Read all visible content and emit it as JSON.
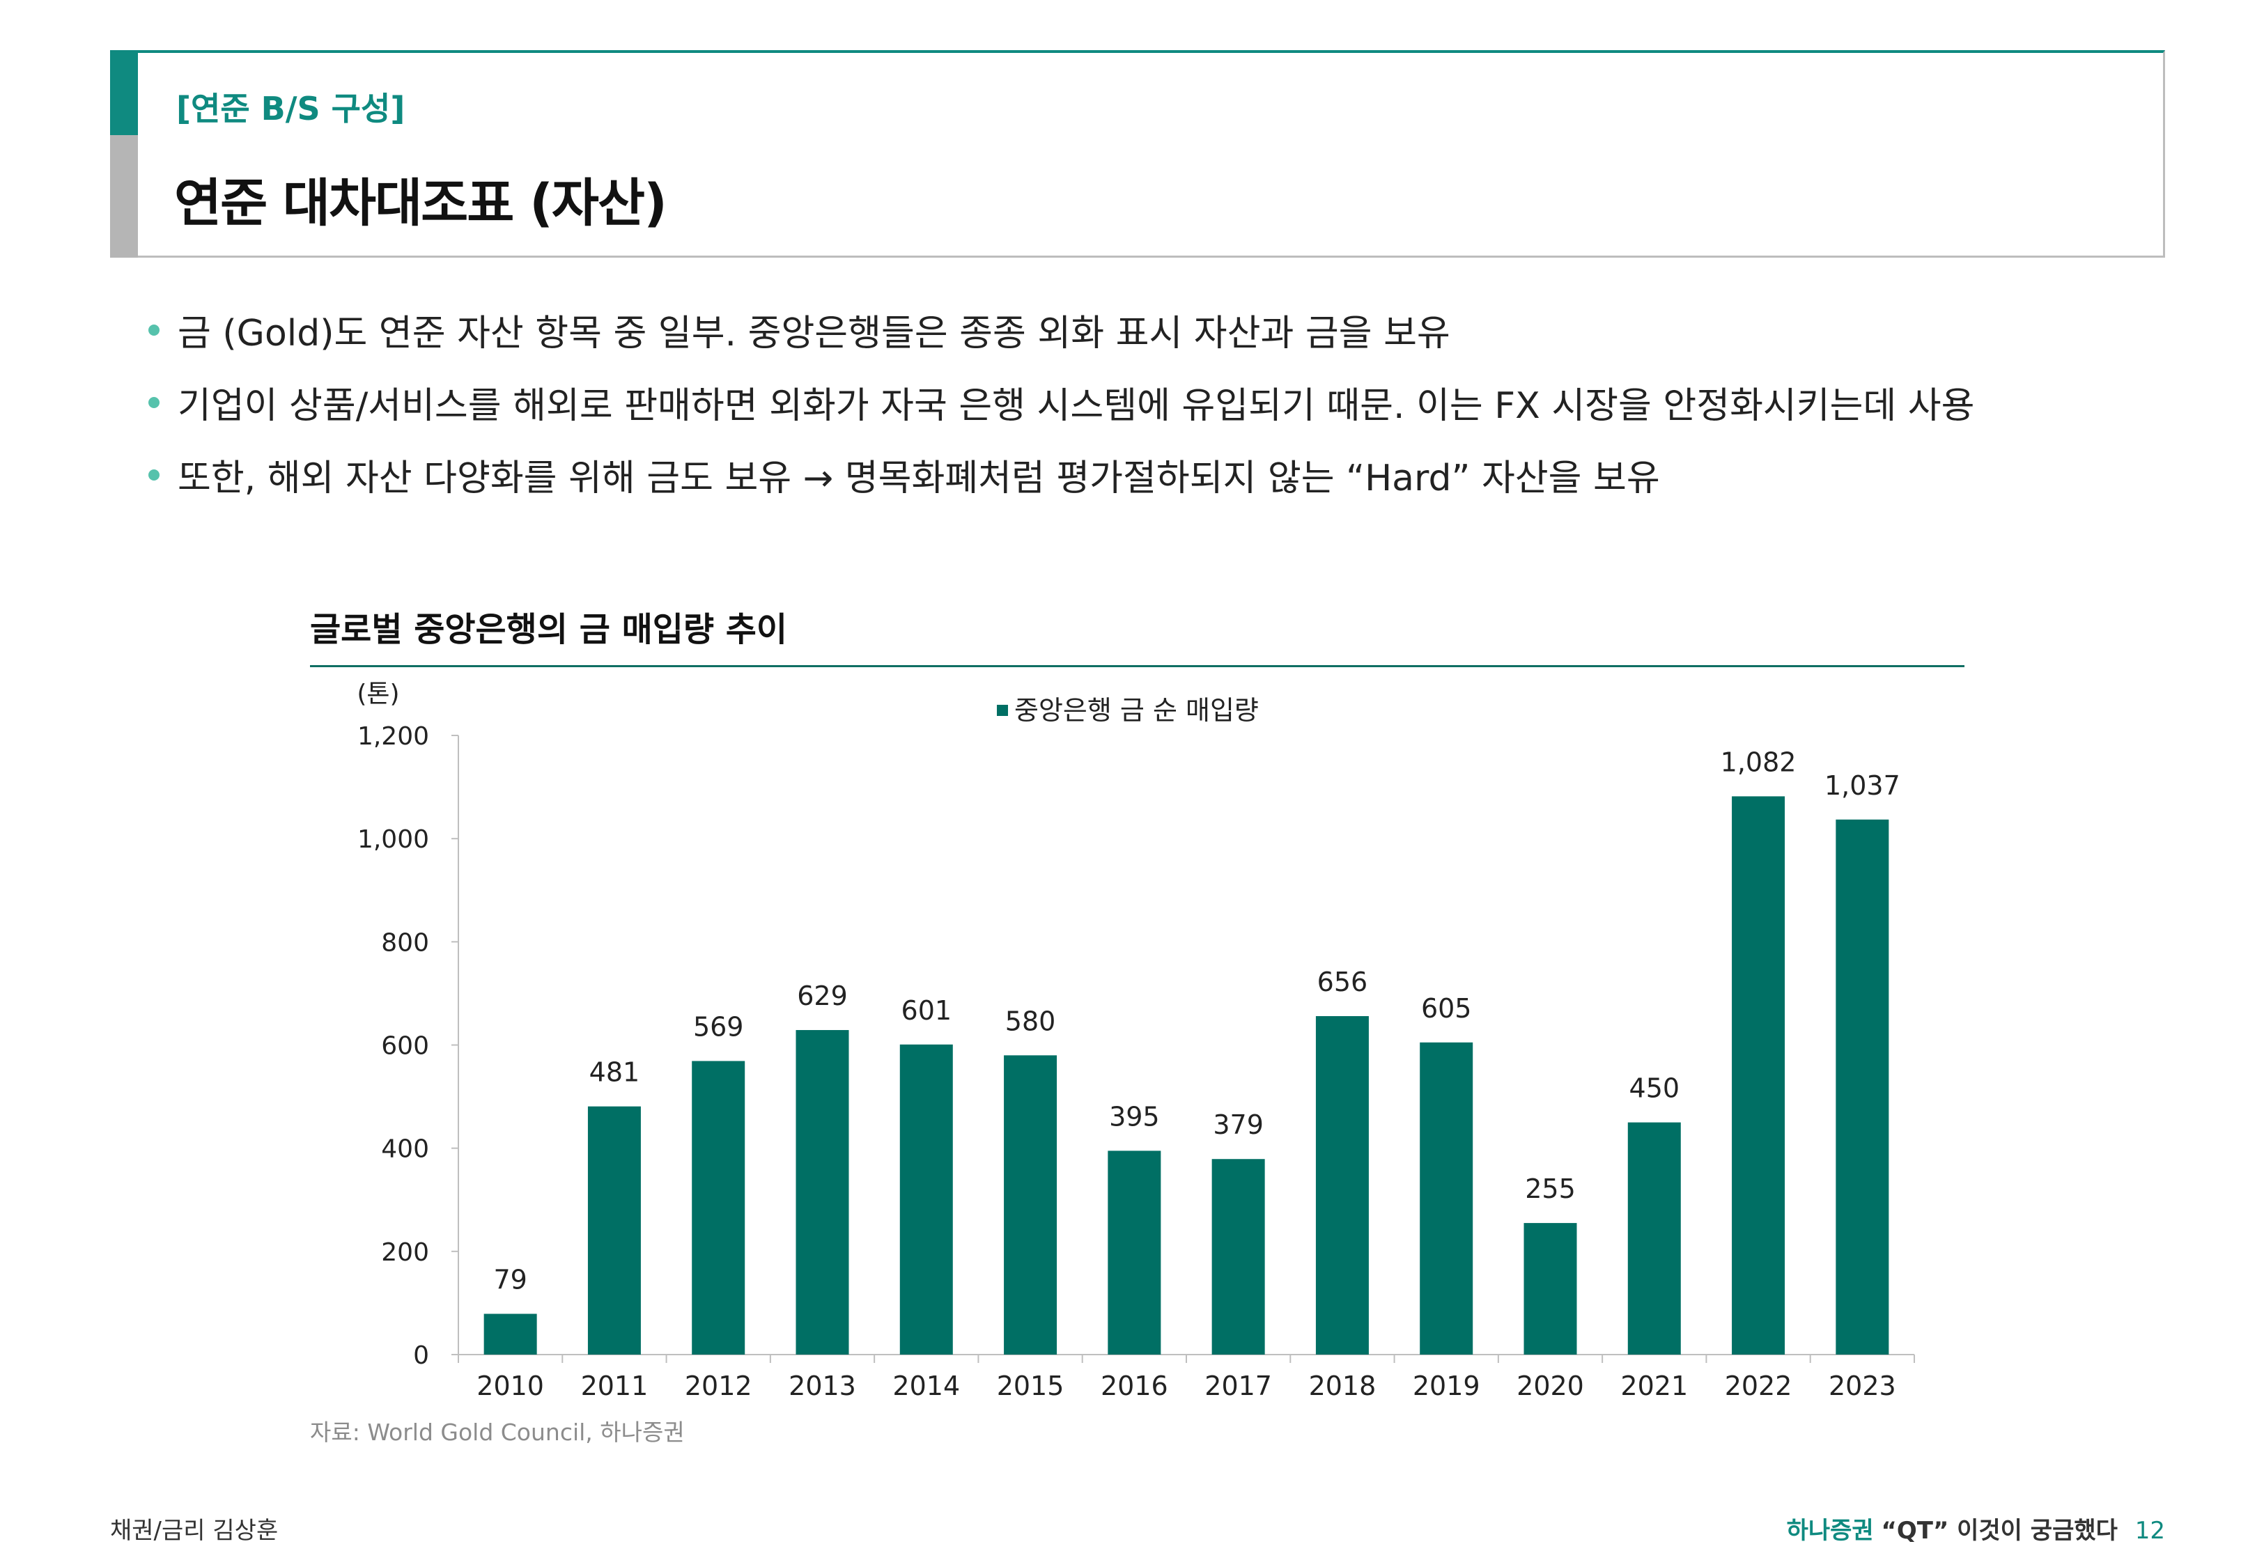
{
  "header": {
    "subtitle": "[연준 B/S 구성]",
    "title": "연준 대차대조표 (자산)"
  },
  "bullets": [
    "금 (Gold)도 연준 자산 항목 중 일부. 중앙은행들은 종종 외화 표시 자산과 금을 보유",
    "기업이 상품/서비스를 해외로 판매하면 외화가 자국 은행 시스템에 유입되기 때문. 이는 FX 시장을 안정화시키는데 사용",
    "또한, 해외 자산 다양화를 위해 금도 보유 → 명목화폐처럼 평가절하되지 않는 “Hard” 자산을 보유"
  ],
  "chart_data": {
    "type": "bar",
    "title": "글로벌 중앙은행의 금 매입량 추이",
    "unit_label": "(톤)",
    "legend": "중앙은행 금 순 매입량",
    "categories": [
      "2010",
      "2011",
      "2012",
      "2013",
      "2014",
      "2015",
      "2016",
      "2017",
      "2018",
      "2019",
      "2020",
      "2021",
      "2022",
      "2023"
    ],
    "values": [
      79,
      481,
      569,
      629,
      601,
      580,
      395,
      379,
      656,
      605,
      255,
      450,
      1082,
      1037
    ],
    "data_labels": [
      "79",
      "481",
      "569",
      "629",
      "601",
      "580",
      "395",
      "379",
      "656",
      "605",
      "255",
      "450",
      "1,082",
      "1,037"
    ],
    "ylim": [
      0,
      1200
    ],
    "yticks": [
      0,
      200,
      400,
      600,
      800,
      1000,
      1200
    ],
    "ytick_labels": [
      "0",
      "200",
      "400",
      "600",
      "800",
      "1,000",
      "1,200"
    ],
    "bar_color": "#006f64"
  },
  "source": "자료: World Gold Council, 하나증권",
  "footer": {
    "left": "채권/금리 김상훈",
    "brand": "하나증권",
    "tagline": "“QT” 이것이 궁금했다",
    "page": "12"
  }
}
